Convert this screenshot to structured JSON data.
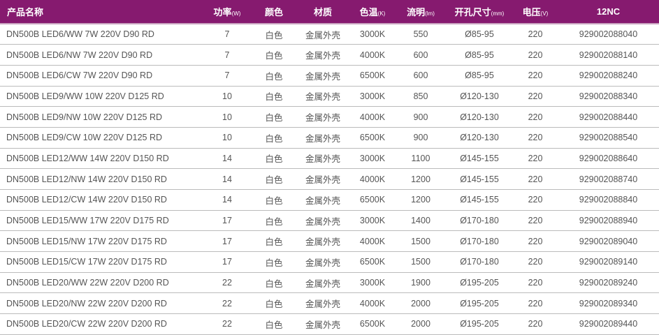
{
  "header_color": "#861a6f",
  "columns": [
    {
      "label": "产品名称",
      "unit": ""
    },
    {
      "label": "功率",
      "unit": "(W)"
    },
    {
      "label": "颜色",
      "unit": ""
    },
    {
      "label": "材质",
      "unit": ""
    },
    {
      "label": "色温",
      "unit": "(K)"
    },
    {
      "label": "流明",
      "unit": "(lm)"
    },
    {
      "label": "开孔尺寸",
      "unit": "(mm)"
    },
    {
      "label": "电压",
      "unit": "(V)"
    },
    {
      "label": "12NC",
      "unit": ""
    }
  ],
  "rows": [
    [
      "DN500B LED6/WW 7W 220V D90 RD",
      "7",
      "白色",
      "金属外壳",
      "3000K",
      "550",
      "Ø85-95",
      "220",
      "929002088040"
    ],
    [
      "DN500B LED6/NW 7W 220V D90 RD",
      "7",
      "白色",
      "金属外壳",
      "4000K",
      "600",
      "Ø85-95",
      "220",
      "929002088140"
    ],
    [
      "DN500B LED6/CW 7W 220V D90 RD",
      "7",
      "白色",
      "金属外壳",
      "6500K",
      "600",
      "Ø85-95",
      "220",
      "929002088240"
    ],
    [
      "DN500B LED9/WW 10W 220V D125 RD",
      "10",
      "白色",
      "金属外壳",
      "3000K",
      "850",
      "Ø120-130",
      "220",
      "929002088340"
    ],
    [
      "DN500B LED9/NW 10W 220V D125 RD",
      "10",
      "白色",
      "金属外壳",
      "4000K",
      "900",
      "Ø120-130",
      "220",
      "929002088440"
    ],
    [
      "DN500B LED9/CW 10W 220V D125 RD",
      "10",
      "白色",
      "金属外壳",
      "6500K",
      "900",
      "Ø120-130",
      "220",
      "929002088540"
    ],
    [
      "DN500B LED12/WW 14W 220V D150 RD",
      "14",
      "白色",
      "金属外壳",
      "3000K",
      "1100",
      "Ø145-155",
      "220",
      "929002088640"
    ],
    [
      "DN500B LED12/NW 14W 220V D150 RD",
      "14",
      "白色",
      "金属外壳",
      "4000K",
      "1200",
      "Ø145-155",
      "220",
      "929002088740"
    ],
    [
      "DN500B LED12/CW 14W 220V D150 RD",
      "14",
      "白色",
      "金属外壳",
      "6500K",
      "1200",
      "Ø145-155",
      "220",
      "929002088840"
    ],
    [
      "DN500B LED15/WW 17W 220V D175 RD",
      "17",
      "白色",
      "金属外壳",
      "3000K",
      "1400",
      "Ø170-180",
      "220",
      "929002088940"
    ],
    [
      "DN500B LED15/NW 17W 220V D175 RD",
      "17",
      "白色",
      "金属外壳",
      "4000K",
      "1500",
      "Ø170-180",
      "220",
      "929002089040"
    ],
    [
      "DN500B LED15/CW 17W 220V D175 RD",
      "17",
      "白色",
      "金属外壳",
      "6500K",
      "1500",
      "Ø170-180",
      "220",
      "929002089140"
    ],
    [
      "DN500B LED20/WW 22W 220V D200 RD",
      "22",
      "白色",
      "金属外壳",
      "3000K",
      "1900",
      "Ø195-205",
      "220",
      "929002089240"
    ],
    [
      "DN500B LED20/NW 22W 220V D200 RD",
      "22",
      "白色",
      "金属外壳",
      "4000K",
      "2000",
      "Ø195-205",
      "220",
      "929002089340"
    ],
    [
      "DN500B LED20/CW 22W 220V D200 RD",
      "22",
      "白色",
      "金属外壳",
      "6500K",
      "2000",
      "Ø195-205",
      "220",
      "929002089440"
    ]
  ]
}
